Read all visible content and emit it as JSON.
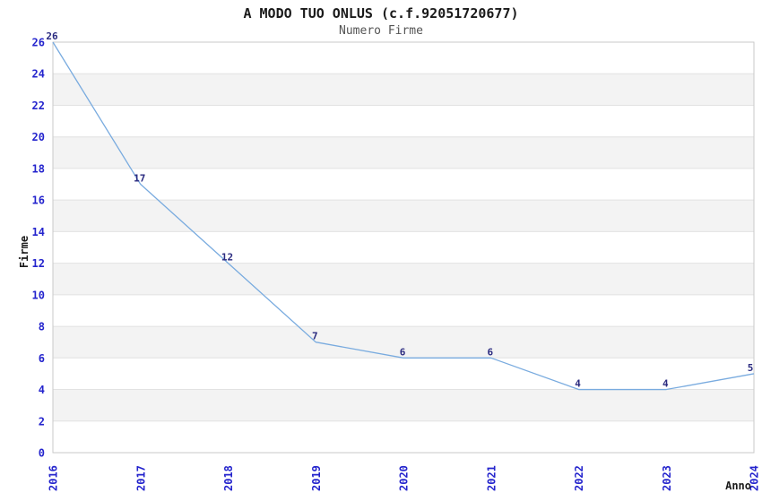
{
  "header": {
    "title": "A MODO TUO ONLUS (c.f.92051720677)",
    "subtitle": "Numero Firme"
  },
  "chart_data": {
    "type": "line",
    "title": "A MODO TUO ONLUS (c.f.92051720677)",
    "subtitle": "Numero Firme",
    "xlabel": "Anno",
    "ylabel": "Firme",
    "x": [
      "2016",
      "2017",
      "2018",
      "2019",
      "2020",
      "2021",
      "2022",
      "2023",
      "2024"
    ],
    "series": [
      {
        "name": "Numero Firme",
        "values": [
          26,
          17,
          12,
          7,
          6,
          6,
          4,
          4,
          5
        ]
      }
    ],
    "ylim": [
      0,
      26
    ],
    "ytick_step": 2,
    "grid": "horizontal-bands-alternating",
    "legend": "none",
    "colors": {
      "line": "#79abdf",
      "tick_label": "#2424cd",
      "data_label": "#2b2b80",
      "band": "#f3f3f3",
      "gridline": "#e2e2e2",
      "border": "#c9c9c9",
      "title": "#1a1a1a",
      "subtitle": "#545454"
    }
  }
}
